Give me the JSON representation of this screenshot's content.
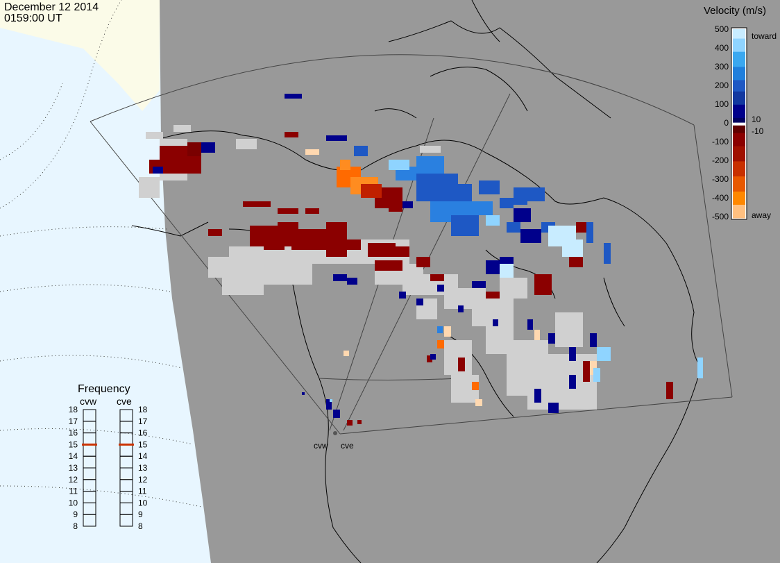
{
  "header": {
    "date": "December 12 2014",
    "time": "0159:00 UT"
  },
  "velocity_legend": {
    "title": "Velocity (m/s)",
    "ticks": [
      "500",
      "400",
      "300",
      "200",
      "100",
      "0",
      "-100",
      "-200",
      "-300",
      "-400",
      "-500"
    ],
    "toward_label": "toward",
    "away_label": "away",
    "small_pos": "10",
    "small_neg": "-10"
  },
  "frequency_legend": {
    "title": "Frequency",
    "left_radar": "cvw",
    "right_radar": "cve",
    "ticks": [
      "18",
      "17",
      "16",
      "15",
      "14",
      "13",
      "12",
      "11",
      "10",
      "9",
      "8"
    ],
    "cvw_value": 15,
    "cve_value": 15,
    "marker_color": "#cc3300"
  },
  "radars": [
    {
      "name": "cvw"
    },
    {
      "name": "cve"
    }
  ],
  "colors": {
    "ground": "#d0d0d0",
    "ocean_light": "#e8f6ff",
    "land_light": "#fbfbe8",
    "map_bg": "#999999",
    "scale": [
      "#ffe0c0",
      "#ff9020",
      "#ff6600",
      "#e04000",
      "#c02000",
      "#8b0000",
      "#000070",
      "#1030b0",
      "#2060d0",
      "#2090e8",
      "#60c0f0",
      "#c0e8ff"
    ]
  }
}
